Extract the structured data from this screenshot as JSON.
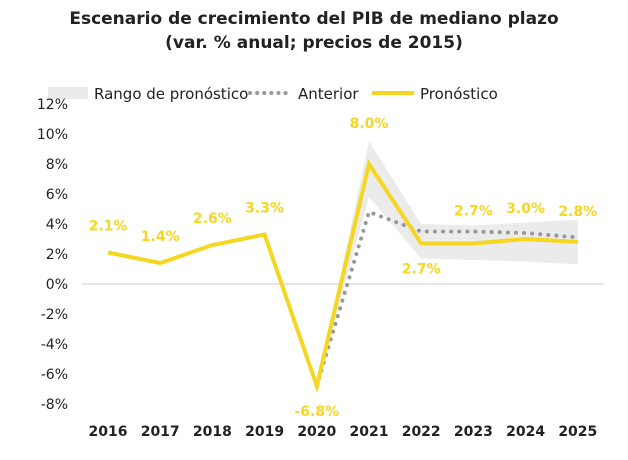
{
  "chart_data": {
    "type": "line",
    "title": "Escenario de crecimiento del PIB de mediano plazo",
    "subtitle": "(var. % anual; precios de 2015)",
    "categories": [
      "2016",
      "2017",
      "2018",
      "2019",
      "2020",
      "2021",
      "2022",
      "2023",
      "2024",
      "2025"
    ],
    "yticks": [
      "12%",
      "10%",
      "8%",
      "6%",
      "4%",
      "2%",
      "0%",
      "-2%",
      "-4%",
      "-6%",
      "-8%"
    ],
    "ylim": [
      -8,
      12
    ],
    "legend_position": "top",
    "series": [
      {
        "name": "Pronóstico",
        "color": "#f5d620",
        "values": [
          2.1,
          1.4,
          2.6,
          3.3,
          -6.8,
          8.0,
          2.7,
          2.7,
          3.0,
          2.8
        ],
        "labels": [
          "2.1%",
          "1.4%",
          "2.6%",
          "3.3%",
          "-6.8%",
          "8.0%",
          "2.7%",
          "2.7%",
          "3.0%",
          "2.8%"
        ]
      },
      {
        "name": "Anterior",
        "color": "#999999",
        "style": "dotted",
        "values": [
          null,
          null,
          null,
          null,
          -6.8,
          4.8,
          3.5,
          3.5,
          3.4,
          3.1
        ]
      },
      {
        "name": "Rango de pronóstico",
        "color": "#ebebeb",
        "type": "band",
        "lower": [
          null,
          null,
          null,
          null,
          -6.8,
          5.8,
          1.7,
          1.6,
          1.5,
          1.3
        ],
        "upper": [
          null,
          null,
          null,
          null,
          -6.8,
          9.5,
          4.0,
          3.9,
          4.1,
          4.3
        ]
      }
    ]
  }
}
